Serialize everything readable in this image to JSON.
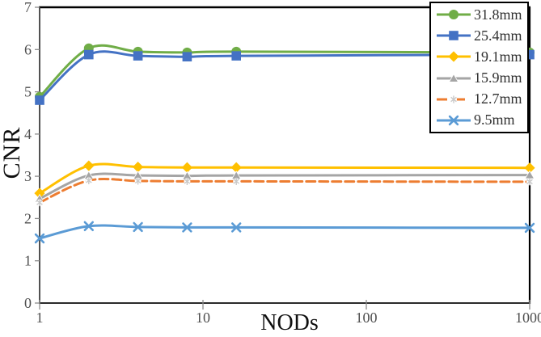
{
  "chart_data": {
    "type": "line",
    "title": "",
    "xlabel": "NODs",
    "ylabel": "CNR",
    "x_scale": "log",
    "xlim": [
      1,
      1000
    ],
    "ylim": [
      0,
      7
    ],
    "x_ticks": [
      1,
      10,
      100,
      1000
    ],
    "x_tick_labels": [
      "1",
      "10",
      "100",
      "1000"
    ],
    "y_ticks": [
      0,
      1,
      2,
      3,
      4,
      5,
      6,
      7
    ],
    "y_tick_labels": [
      "0",
      "1",
      "2",
      "3",
      "4",
      "5",
      "6",
      "7"
    ],
    "grid": false,
    "legend_position": "top-right",
    "x": [
      1,
      2,
      4,
      8,
      16,
      1000
    ],
    "series": [
      {
        "name": "31.8mm",
        "color": "#70AD47",
        "marker": "circle",
        "dash": "solid",
        "values": [
          4.88,
          6.03,
          5.95,
          5.93,
          5.95,
          5.93
        ]
      },
      {
        "name": "25.4mm",
        "color": "#4472C4",
        "marker": "square",
        "dash": "solid",
        "values": [
          4.8,
          5.88,
          5.85,
          5.83,
          5.85,
          5.88
        ]
      },
      {
        "name": "19.1mm",
        "color": "#FFC000",
        "marker": "diamond",
        "dash": "solid",
        "values": [
          2.6,
          3.25,
          3.22,
          3.21,
          3.21,
          3.2
        ]
      },
      {
        "name": "15.9mm",
        "color": "#A5A5A5",
        "marker": "triangle",
        "dash": "solid",
        "values": [
          2.47,
          3.02,
          3.02,
          3.01,
          3.02,
          3.03
        ]
      },
      {
        "name": "12.7mm",
        "color": "#ED7D31",
        "marker": "star",
        "dash": "dashed",
        "values": [
          2.38,
          2.9,
          2.89,
          2.88,
          2.88,
          2.87
        ]
      },
      {
        "name": "9.5mm",
        "color": "#5B9BD5",
        "marker": "x",
        "dash": "solid",
        "values": [
          1.53,
          1.82,
          1.8,
          1.79,
          1.79,
          1.78
        ]
      }
    ],
    "colors": {
      "plot_border": "#000000",
      "axis_line": "#3f3f3f",
      "tick": "#8c8c8c",
      "tick_label": "#4f4f4f",
      "background": "#ffffff"
    }
  }
}
